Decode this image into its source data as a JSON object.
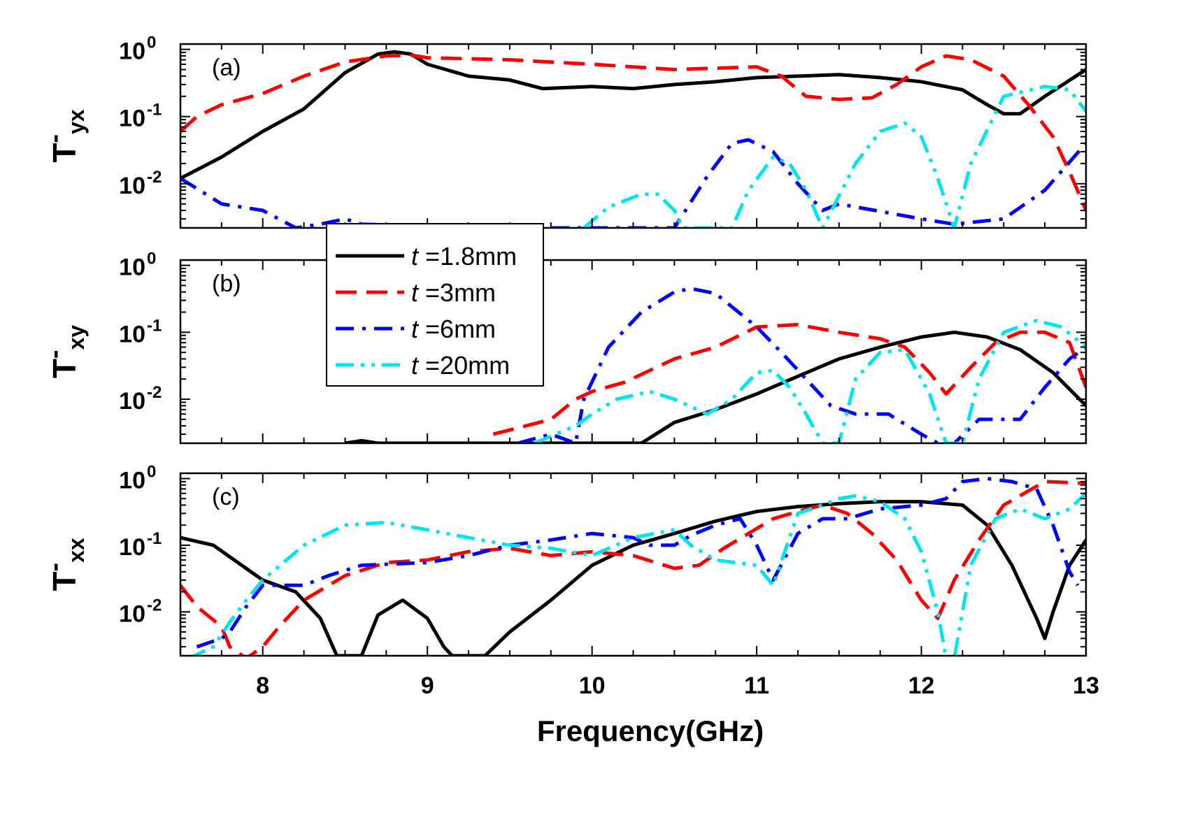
{
  "chart_data": {
    "type": "line",
    "xlabel": "Frequency(GHz)",
    "xlim": [
      7.5,
      13
    ],
    "xticks": [
      "8",
      "9",
      "10",
      "11",
      "12",
      "13"
    ],
    "yscale": "log",
    "ylim": [
      0.0022,
      1.2
    ],
    "yticks": [
      {
        "base": "10",
        "exp": "0",
        "value": 1
      },
      {
        "base": "10",
        "exp": "-1",
        "value": 0.1
      },
      {
        "base": "10",
        "exp": "-2",
        "value": 0.01
      }
    ],
    "legend": {
      "placement": "upper-left between panels (a) and (b)",
      "entries": [
        {
          "var": "t",
          "label": " =1.8mm"
        },
        {
          "var": "t",
          "label": " =3mm"
        },
        {
          "var": "t",
          "label": " =6mm"
        },
        {
          "var": "t",
          "label": " =20mm"
        }
      ]
    },
    "series_styles": [
      {
        "name": "t =1.8mm",
        "color": "#000000",
        "dash": "solid"
      },
      {
        "name": "t =3mm",
        "color": "#ff0000",
        "dash": "dash"
      },
      {
        "name": "t =6mm",
        "color": "#0000ff",
        "dash": "dashdot"
      },
      {
        "name": "t =20mm",
        "color": "#00e5ee",
        "dash": "dashdotdot"
      }
    ],
    "panels": [
      {
        "letter": "(a)",
        "ylabel_main": "T",
        "ylabel_sup": "-",
        "ylabel_sub": "yx",
        "series": [
          {
            "name": "t =1.8mm",
            "x": [
              7.5,
              7.75,
              8,
              8.25,
              8.5,
              8.7,
              8.8,
              8.9,
              9,
              9.25,
              9.5,
              9.7,
              10,
              10.25,
              10.5,
              10.75,
              11,
              11.25,
              11.5,
              11.75,
              12,
              12.25,
              12.4,
              12.5,
              12.6,
              12.75,
              13
            ],
            "y": [
              0.012,
              0.025,
              0.06,
              0.13,
              0.45,
              0.85,
              0.92,
              0.85,
              0.6,
              0.4,
              0.35,
              0.26,
              0.28,
              0.26,
              0.3,
              0.33,
              0.38,
              0.4,
              0.42,
              0.38,
              0.33,
              0.25,
              0.15,
              0.11,
              0.11,
              0.2,
              0.5
            ]
          },
          {
            "name": "t =3mm",
            "x": [
              7.5,
              7.6,
              7.75,
              8,
              8.25,
              8.5,
              8.75,
              8.9,
              9,
              9.5,
              10,
              10.5,
              11,
              11.15,
              11.3,
              11.5,
              11.7,
              11.85,
              12,
              12.15,
              12.3,
              12.5,
              12.65,
              12.8,
              12.9,
              13
            ],
            "y": [
              0.06,
              0.1,
              0.15,
              0.22,
              0.4,
              0.65,
              0.8,
              0.82,
              0.75,
              0.7,
              0.6,
              0.5,
              0.55,
              0.4,
              0.2,
              0.18,
              0.19,
              0.3,
              0.55,
              0.8,
              0.7,
              0.4,
              0.15,
              0.05,
              0.015,
              0.004
            ]
          },
          {
            "name": "t =6mm",
            "x": [
              7.5,
              7.75,
              8,
              8.2,
              8.35,
              8.5,
              8.6,
              9.5,
              10.25,
              10.4,
              10.5,
              10.7,
              10.85,
              10.95,
              11.1,
              11.25,
              11.4,
              11.5,
              12,
              12.2,
              12.5,
              12.75,
              13
            ],
            "y": [
              0.012,
              0.005,
              0.004,
              0.0022,
              0.0025,
              0.003,
              0.0025,
              0.0022,
              0.0022,
              0.0022,
              0.0022,
              0.013,
              0.04,
              0.045,
              0.03,
              0.01,
              0.004,
              0.005,
              0.003,
              0.0025,
              0.003,
              0.008,
              0.04
            ]
          },
          {
            "name": "t =20mm",
            "x": [
              9.95,
              10.1,
              10.3,
              10.4,
              10.5,
              10.55,
              10.85,
              10.95,
              11.1,
              11.2,
              11.3,
              11.4,
              11.6,
              11.75,
              11.9,
              12,
              12.1,
              12.2,
              12.3,
              12.5,
              12.75,
              12.9,
              13
            ],
            "y": [
              0.0022,
              0.0045,
              0.007,
              0.007,
              0.004,
              0.0022,
              0.0022,
              0.008,
              0.025,
              0.02,
              0.008,
              0.0022,
              0.02,
              0.06,
              0.08,
              0.05,
              0.012,
              0.0022,
              0.02,
              0.2,
              0.28,
              0.25,
              0.12
            ]
          }
        ]
      },
      {
        "letter": "(b)",
        "ylabel_main": "T",
        "ylabel_sup": "-",
        "ylabel_sub": "xy",
        "series": [
          {
            "name": "t =1.8mm",
            "x": [
              8.5,
              8.6,
              8.7,
              10.3,
              10.5,
              10.75,
              11,
              11.25,
              11.5,
              11.75,
              12,
              12.2,
              12.4,
              12.6,
              12.8,
              13
            ],
            "y": [
              0.0022,
              0.0024,
              0.0022,
              0.0022,
              0.0045,
              0.007,
              0.012,
              0.022,
              0.04,
              0.06,
              0.085,
              0.1,
              0.085,
              0.055,
              0.025,
              0.008
            ]
          },
          {
            "name": "t =3mm",
            "x": [
              9.4,
              9.6,
              9.75,
              9.9,
              10,
              10.2,
              10.5,
              10.75,
              11,
              11.25,
              11.5,
              11.75,
              11.9,
              12.05,
              12.15,
              12.3,
              12.45,
              12.6,
              12.75,
              12.9,
              13
            ],
            "y": [
              0.003,
              0.004,
              0.005,
              0.01,
              0.013,
              0.018,
              0.04,
              0.06,
              0.12,
              0.13,
              0.1,
              0.08,
              0.06,
              0.025,
              0.012,
              0.03,
              0.07,
              0.1,
              0.1,
              0.07,
              0.015
            ]
          },
          {
            "name": "t =6mm",
            "x": [
              9.55,
              9.75,
              9.9,
              9.95,
              10.1,
              10.3,
              10.5,
              10.6,
              10.75,
              11,
              11.15,
              11.3,
              11.45,
              11.6,
              11.8,
              12,
              12.1,
              12.2,
              12.35,
              12.6,
              12.75,
              12.9,
              13
            ],
            "y": [
              0.0022,
              0.003,
              0.0022,
              0.01,
              0.06,
              0.2,
              0.4,
              0.45,
              0.38,
              0.12,
              0.05,
              0.02,
              0.008,
              0.006,
              0.006,
              0.003,
              0.0022,
              0.0022,
              0.005,
              0.005,
              0.015,
              0.04,
              0.06
            ]
          },
          {
            "name": "t =20mm",
            "x": [
              9.65,
              9.9,
              10,
              10.15,
              10.35,
              10.5,
              10.7,
              10.85,
              11,
              11.1,
              11.2,
              11.3,
              11.4,
              11.5,
              11.6,
              11.75,
              11.9,
              12.05,
              12.15,
              12.25,
              12.35,
              12.5,
              12.7,
              12.85,
              13
            ],
            "y": [
              0.0022,
              0.004,
              0.006,
              0.01,
              0.013,
              0.01,
              0.006,
              0.01,
              0.025,
              0.027,
              0.015,
              0.006,
              0.0022,
              0.0022,
              0.02,
              0.05,
              0.055,
              0.012,
              0.0022,
              0.0022,
              0.02,
              0.1,
              0.15,
              0.12,
              0.06
            ]
          }
        ]
      },
      {
        "letter": "(c)",
        "ylabel_main": "T",
        "ylabel_sup": "-",
        "ylabel_sub": "xx",
        "series": [
          {
            "name": "t =1.8mm",
            "x": [
              7.5,
              7.7,
              8,
              8.2,
              8.35,
              8.45,
              8.6,
              8.7,
              8.85,
              9,
              9.1,
              9.15,
              9.35,
              9.5,
              9.75,
              10,
              10.25,
              10.5,
              10.75,
              11,
              11.25,
              11.5,
              11.75,
              12,
              12.25,
              12.4,
              12.55,
              12.7,
              12.75,
              12.8,
              12.9,
              13
            ],
            "y": [
              0.13,
              0.1,
              0.03,
              0.02,
              0.008,
              0.0022,
              0.0022,
              0.009,
              0.015,
              0.008,
              0.003,
              0.0022,
              0.0022,
              0.005,
              0.015,
              0.05,
              0.1,
              0.15,
              0.23,
              0.32,
              0.38,
              0.42,
              0.45,
              0.45,
              0.4,
              0.2,
              0.05,
              0.008,
              0.004,
              0.01,
              0.05,
              0.12
            ]
          },
          {
            "name": "t =3mm",
            "x": [
              7.5,
              7.6,
              7.75,
              7.8,
              7.9,
              8,
              8.1,
              8.25,
              8.5,
              8.75,
              9,
              9.25,
              9.5,
              9.75,
              10,
              10.25,
              10.5,
              10.65,
              10.8,
              10.95,
              11.1,
              11.25,
              11.4,
              11.55,
              11.7,
              11.85,
              12,
              12.1,
              12.2,
              12.35,
              12.5,
              12.75,
              13
            ],
            "y": [
              0.025,
              0.012,
              0.006,
              0.003,
              0.002,
              0.003,
              0.006,
              0.015,
              0.035,
              0.055,
              0.06,
              0.08,
              0.09,
              0.07,
              0.08,
              0.07,
              0.045,
              0.05,
              0.09,
              0.15,
              0.25,
              0.32,
              0.4,
              0.3,
              0.15,
              0.06,
              0.015,
              0.008,
              0.03,
              0.12,
              0.4,
              0.9,
              0.85
            ]
          },
          {
            "name": "t =6mm",
            "x": [
              7.6,
              7.75,
              7.8,
              7.9,
              8,
              8.25,
              8.4,
              8.6,
              9,
              9.25,
              9.5,
              9.75,
              10,
              10.25,
              10.35,
              10.5,
              10.6,
              10.75,
              10.9,
              11,
              11.1,
              11.25,
              11.4,
              11.55,
              11.75,
              12,
              12.15,
              12.25,
              12.4,
              12.55,
              12.7,
              12.8,
              12.9,
              12.95
            ],
            "y": [
              0.003,
              0.004,
              0.005,
              0.012,
              0.025,
              0.025,
              0.035,
              0.05,
              0.055,
              0.07,
              0.1,
              0.12,
              0.15,
              0.13,
              0.1,
              0.1,
              0.14,
              0.2,
              0.25,
              0.1,
              0.03,
              0.15,
              0.25,
              0.25,
              0.35,
              0.4,
              0.5,
              0.9,
              1.0,
              0.9,
              0.7,
              0.2,
              0.04,
              0.025
            ]
          },
          {
            "name": "t =20mm",
            "x": [
              7.55,
              7.7,
              7.8,
              7.9,
              8,
              8.25,
              8.5,
              8.75,
              9,
              9.25,
              9.5,
              9.75,
              10,
              10.25,
              10.5,
              10.6,
              10.75,
              11,
              11.1,
              11.25,
              11.4,
              11.5,
              11.6,
              11.75,
              11.9,
              12,
              12.1,
              12.15,
              12.2,
              12.3,
              12.45,
              12.6,
              12.75,
              12.9,
              13
            ],
            "y": [
              0.002,
              0.003,
              0.007,
              0.015,
              0.03,
              0.1,
              0.2,
              0.22,
              0.17,
              0.13,
              0.1,
              0.09,
              0.07,
              0.13,
              0.17,
              0.1,
              0.06,
              0.05,
              0.025,
              0.3,
              0.4,
              0.5,
              0.55,
              0.45,
              0.25,
              0.08,
              0.01,
              0.002,
              0.002,
              0.05,
              0.25,
              0.35,
              0.25,
              0.35,
              0.6
            ]
          }
        ]
      }
    ]
  }
}
